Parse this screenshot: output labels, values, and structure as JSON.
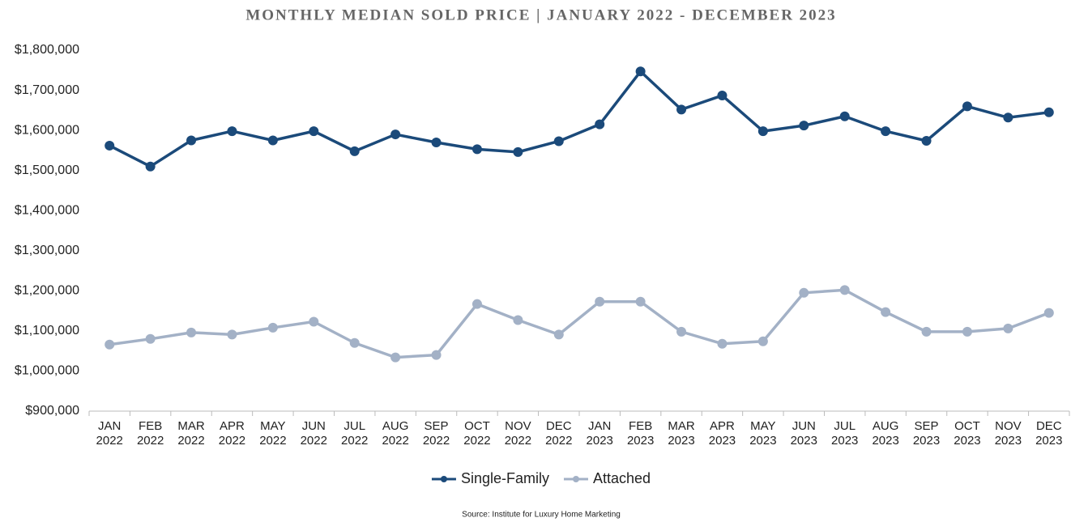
{
  "chart_data": {
    "type": "line",
    "title": "MONTHLY MEDIAN SOLD PRICE | JANUARY 2022 - DECEMBER 2023",
    "categories": [
      "JAN 2022",
      "FEB 2022",
      "MAR 2022",
      "APR 2022",
      "MAY 2022",
      "JUN 2022",
      "JUL 2022",
      "AUG 2022",
      "SEP 2022",
      "OCT 2022",
      "NOV 2022",
      "DEC 2022",
      "JAN 2023",
      "FEB 2023",
      "MAR 2023",
      "APR 2023",
      "MAY 2023",
      "JUN 2023",
      "JUL 2023",
      "AUG 2023",
      "SEP 2023",
      "OCT 2023",
      "NOV 2023",
      "DEC 2023"
    ],
    "series": [
      {
        "name": "Single-Family",
        "color": "#1b4a7a",
        "values": [
          1562000,
          1510000,
          1575000,
          1598000,
          1575000,
          1598000,
          1548000,
          1590000,
          1570000,
          1553000,
          1546000,
          1573000,
          1615000,
          1747000,
          1652000,
          1687000,
          1598000,
          1612000,
          1635000,
          1598000,
          1574000,
          1660000,
          1632000,
          1645000
        ]
      },
      {
        "name": "Attached",
        "color": "#a3b1c6",
        "values": [
          1066000,
          1080000,
          1096000,
          1091000,
          1108000,
          1123000,
          1070000,
          1034000,
          1040000,
          1167000,
          1127000,
          1091000,
          1173000,
          1173000,
          1098000,
          1068000,
          1074000,
          1195000,
          1202000,
          1147000,
          1098000,
          1098000,
          1106000,
          1145000
        ]
      }
    ],
    "ylim": [
      900000,
      1800000
    ],
    "yticks": [
      {
        "value": 900000,
        "label": "$900,000"
      },
      {
        "value": 1000000,
        "label": "$1,000,000"
      },
      {
        "value": 1100000,
        "label": "$1,100,000"
      },
      {
        "value": 1200000,
        "label": "$1,200,000"
      },
      {
        "value": 1300000,
        "label": "$1,300,000"
      },
      {
        "value": 1400000,
        "label": "$1,400,000"
      },
      {
        "value": 1500000,
        "label": "$1,500,000"
      },
      {
        "value": 1600000,
        "label": "$1,600,000"
      },
      {
        "value": 1700000,
        "label": "$1,700,000"
      },
      {
        "value": 1800000,
        "label": "$1,800,000"
      }
    ],
    "grid": false,
    "legend": "bottom",
    "source": "Source: Institute for Luxury Home Marketing"
  }
}
